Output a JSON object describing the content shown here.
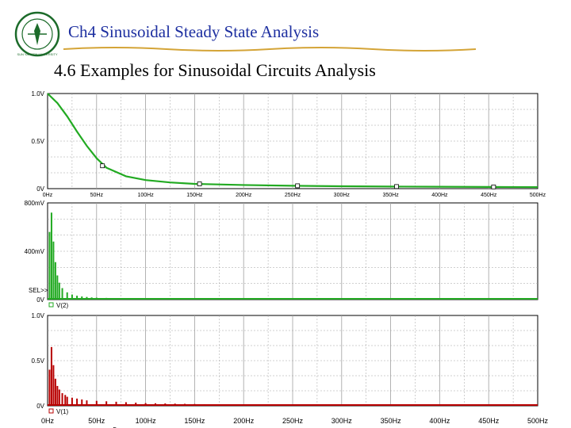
{
  "header": {
    "chapter_title": "Ch4 Sinusoidal Steady State Analysis",
    "section_title": "4.6 Examples for Sinusoidal Circuits Analysis",
    "logo_text": "SUN YAT-SEN UNIVERSITY"
  },
  "colors": {
    "title": "#1d2fa0",
    "rule": "#d4a437",
    "green": "#22aa22",
    "red": "#b80000",
    "grid": "#a0a0a0"
  },
  "chart_data": [
    {
      "type": "line",
      "name": "top-panel",
      "x_ticks": [
        "0Hz",
        "50Hz",
        "100Hz",
        "150Hz",
        "200Hz",
        "250Hz",
        "300Hz",
        "350Hz",
        "400Hz",
        "450Hz",
        "500Hz"
      ],
      "y_ticks": [
        "0V",
        "0.5V",
        "1.0V"
      ],
      "xlim": [
        0,
        500
      ],
      "ylim": [
        0,
        1.0
      ],
      "series": [
        {
          "name": "envelope",
          "x": [
            0,
            10,
            20,
            30,
            40,
            50,
            60,
            80,
            100,
            125,
            150,
            200,
            250,
            300,
            350,
            400,
            450,
            500
          ],
          "values": [
            1.0,
            0.9,
            0.76,
            0.6,
            0.45,
            0.32,
            0.22,
            0.13,
            0.09,
            0.065,
            0.05,
            0.038,
            0.03,
            0.025,
            0.022,
            0.02,
            0.018,
            0.016
          ]
        }
      ],
      "markers": [
        {
          "x": 56,
          "y": 0.24
        },
        {
          "x": 155,
          "y": 0.05
        },
        {
          "x": 255,
          "y": 0.03
        },
        {
          "x": 356,
          "y": 0.022
        },
        {
          "x": 455,
          "y": 0.018
        }
      ]
    },
    {
      "type": "bar",
      "name": "middle-panel",
      "y_ticks": [
        "0V",
        "400mV",
        "800mV"
      ],
      "ylim": [
        0,
        800
      ],
      "legend": "V(2)",
      "cursor_label": "SEL>>",
      "series": [
        {
          "name": "V(2)",
          "x": [
            2,
            4,
            6,
            8,
            10,
            12,
            15,
            20,
            25,
            30,
            35,
            40,
            45,
            50,
            60,
            70,
            80,
            90,
            100,
            110,
            120
          ],
          "values": [
            560,
            720,
            480,
            310,
            200,
            140,
            95,
            60,
            42,
            32,
            26,
            22,
            18,
            16,
            14,
            12,
            11,
            10,
            9,
            8,
            8
          ]
        }
      ]
    },
    {
      "type": "bar",
      "name": "bottom-panel",
      "x_ticks": [
        "0Hz",
        "50Hz",
        "100Hz",
        "150Hz",
        "200Hz",
        "250Hz",
        "300Hz",
        "350Hz",
        "400Hz",
        "450Hz",
        "500Hz"
      ],
      "y_ticks": [
        "0V",
        "0.5V",
        "1.0V"
      ],
      "xlim": [
        0,
        500
      ],
      "ylim": [
        0,
        1.0
      ],
      "legend": "V(1)",
      "xlabel": "Frequency",
      "series": [
        {
          "name": "V(1)",
          "x": [
            2,
            4,
            6,
            8,
            10,
            12,
            15,
            18,
            20,
            25,
            30,
            35,
            40,
            50,
            60,
            70,
            80,
            90,
            100,
            110,
            120,
            130,
            140,
            150,
            160,
            170,
            180,
            190,
            200
          ],
          "values": [
            0.4,
            0.65,
            0.45,
            0.3,
            0.22,
            0.18,
            0.14,
            0.12,
            0.1,
            0.09,
            0.08,
            0.07,
            0.06,
            0.055,
            0.05,
            0.045,
            0.04,
            0.035,
            0.03,
            0.028,
            0.026,
            0.024,
            0.022,
            0.02,
            0.018,
            0.017,
            0.016,
            0.015,
            0.014
          ]
        }
      ]
    }
  ]
}
